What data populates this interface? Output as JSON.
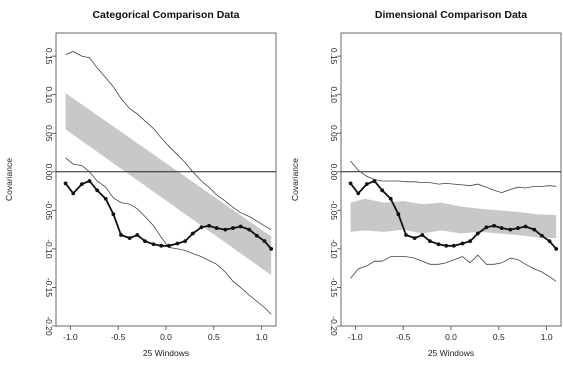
{
  "chart_data": [
    {
      "type": "line",
      "title": "Categorical Comparison Data",
      "xlabel": "25 Windows",
      "ylabel": "Covariance",
      "xlim": [
        -1.15,
        1.15
      ],
      "ylim": [
        -0.2,
        0.18
      ],
      "x_ticks": [
        -1.0,
        -0.5,
        0.0,
        0.5,
        1.0
      ],
      "x_tick_labels": [
        "-1.0",
        "-0.5",
        "0.0",
        "0.5",
        "1.0"
      ],
      "y_ticks": [
        0.15,
        0.1,
        0.05,
        0.0,
        -0.05,
        -0.1,
        -0.15,
        -0.2
      ],
      "y_tick_labels": [
        "0.15",
        "0.10",
        "0.05",
        "0.00",
        "-0.05",
        "-0.10",
        "-0.15",
        "-0.20"
      ],
      "reference_line_y": 0.0,
      "band": {
        "x": [
          -1.05,
          1.1
        ],
        "upper": [
          0.102,
          -0.084
        ],
        "lower": [
          0.055,
          -0.134
        ],
        "color": "#c8c8c8"
      },
      "series": [
        {
          "x": [
            -1.05,
            -0.97,
            -0.88,
            -0.8,
            -0.72,
            -0.63,
            -0.55,
            -0.47,
            -0.38,
            -0.3,
            -0.22,
            -0.13,
            -0.05,
            0.03,
            0.12,
            0.2,
            0.28,
            0.37,
            0.45,
            0.53,
            0.62,
            0.7,
            0.78,
            0.87,
            0.95,
            1.03,
            1.1
          ],
          "y": [
            0.152,
            0.156,
            0.15,
            0.148,
            0.135,
            0.122,
            0.11,
            0.095,
            0.082,
            0.075,
            0.066,
            0.056,
            0.044,
            0.033,
            0.022,
            0.012,
            0.0,
            -0.012,
            -0.02,
            -0.03,
            -0.038,
            -0.046,
            -0.053,
            -0.058,
            -0.064,
            -0.07,
            -0.075
          ],
          "style": "thin"
        },
        {
          "x": [
            -1.05,
            -0.97,
            -0.88,
            -0.8,
            -0.72,
            -0.63,
            -0.55,
            -0.47,
            -0.38,
            -0.3,
            -0.22,
            -0.13,
            -0.05,
            0.03,
            0.12,
            0.2,
            0.28,
            0.37,
            0.45,
            0.53,
            0.62,
            0.7,
            0.78,
            0.87,
            0.95,
            1.03,
            1.1
          ],
          "y": [
            0.018,
            0.01,
            0.008,
            0.0,
            -0.012,
            -0.02,
            -0.034,
            -0.04,
            -0.042,
            -0.048,
            -0.058,
            -0.07,
            -0.085,
            -0.098,
            -0.1,
            -0.102,
            -0.106,
            -0.11,
            -0.115,
            -0.12,
            -0.13,
            -0.142,
            -0.15,
            -0.16,
            -0.168,
            -0.176,
            -0.185
          ],
          "style": "thin"
        },
        {
          "x": [
            -1.05,
            -0.97,
            -0.88,
            -0.8,
            -0.72,
            -0.63,
            -0.55,
            -0.47,
            -0.38,
            -0.3,
            -0.22,
            -0.13,
            -0.05,
            0.03,
            0.12,
            0.2,
            0.28,
            0.37,
            0.45,
            0.53,
            0.62,
            0.7,
            0.78,
            0.87,
            0.95,
            1.03,
            1.1
          ],
          "y": [
            -0.015,
            -0.028,
            -0.016,
            -0.012,
            -0.024,
            -0.035,
            -0.055,
            -0.082,
            -0.086,
            -0.082,
            -0.09,
            -0.094,
            -0.096,
            -0.096,
            -0.093,
            -0.09,
            -0.08,
            -0.072,
            -0.07,
            -0.073,
            -0.075,
            -0.073,
            -0.071,
            -0.075,
            -0.083,
            -0.09,
            -0.1
          ],
          "style": "points"
        }
      ]
    },
    {
      "type": "line",
      "title": "Dimensional Comparison Data",
      "xlabel": "25 Windows",
      "ylabel": "Covariance",
      "xlim": [
        -1.15,
        1.15
      ],
      "ylim": [
        -0.2,
        0.18
      ],
      "x_ticks": [
        -1.0,
        -0.5,
        0.0,
        0.5,
        1.0
      ],
      "x_tick_labels": [
        "-1.0",
        "-0.5",
        "0.0",
        "0.5",
        "1.0"
      ],
      "y_ticks": [
        0.15,
        0.1,
        0.05,
        0.0,
        -0.05,
        -0.1,
        -0.15,
        -0.2
      ],
      "y_tick_labels": [
        "0.15",
        "0.10",
        "0.05",
        "0.00",
        "-0.05",
        "-0.10",
        "-0.15",
        "-0.20"
      ],
      "reference_line_y": 0.0,
      "band": {
        "x": [
          -1.05,
          -0.9,
          -0.7,
          -0.5,
          -0.3,
          -0.1,
          0.1,
          0.3,
          0.5,
          0.7,
          0.9,
          1.1
        ],
        "upper": [
          -0.04,
          -0.035,
          -0.04,
          -0.038,
          -0.042,
          -0.04,
          -0.045,
          -0.048,
          -0.05,
          -0.052,
          -0.055,
          -0.056
        ],
        "lower": [
          -0.078,
          -0.076,
          -0.078,
          -0.075,
          -0.08,
          -0.076,
          -0.08,
          -0.078,
          -0.08,
          -0.082,
          -0.085,
          -0.086
        ],
        "color": "#c8c8c8"
      },
      "series": [
        {
          "x": [
            -1.05,
            -0.97,
            -0.88,
            -0.8,
            -0.72,
            -0.63,
            -0.55,
            -0.47,
            -0.38,
            -0.3,
            -0.22,
            -0.13,
            -0.05,
            0.03,
            0.12,
            0.2,
            0.28,
            0.37,
            0.45,
            0.53,
            0.62,
            0.7,
            0.78,
            0.87,
            0.95,
            1.03,
            1.1
          ],
          "y": [
            0.014,
            0.002,
            -0.006,
            -0.01,
            -0.012,
            -0.012,
            -0.012,
            -0.013,
            -0.013,
            -0.014,
            -0.014,
            -0.016,
            -0.015,
            -0.016,
            -0.017,
            -0.018,
            -0.016,
            -0.02,
            -0.024,
            -0.027,
            -0.023,
            -0.02,
            -0.021,
            -0.019,
            -0.019,
            -0.018,
            -0.019
          ],
          "style": "thin"
        },
        {
          "x": [
            -1.05,
            -0.97,
            -0.88,
            -0.8,
            -0.72,
            -0.63,
            -0.55,
            -0.47,
            -0.38,
            -0.3,
            -0.22,
            -0.13,
            -0.05,
            0.03,
            0.12,
            0.2,
            0.28,
            0.37,
            0.45,
            0.53,
            0.62,
            0.7,
            0.78,
            0.87,
            0.95,
            1.03,
            1.1
          ],
          "y": [
            -0.138,
            -0.126,
            -0.122,
            -0.116,
            -0.116,
            -0.11,
            -0.11,
            -0.11,
            -0.112,
            -0.116,
            -0.12,
            -0.12,
            -0.118,
            -0.114,
            -0.11,
            -0.118,
            -0.108,
            -0.12,
            -0.12,
            -0.118,
            -0.112,
            -0.114,
            -0.12,
            -0.126,
            -0.13,
            -0.136,
            -0.142
          ],
          "style": "thin"
        },
        {
          "x": [
            -1.05,
            -0.97,
            -0.88,
            -0.8,
            -0.72,
            -0.63,
            -0.55,
            -0.47,
            -0.38,
            -0.3,
            -0.22,
            -0.13,
            -0.05,
            0.03,
            0.12,
            0.2,
            0.28,
            0.37,
            0.45,
            0.53,
            0.62,
            0.7,
            0.78,
            0.87,
            0.95,
            1.03,
            1.1
          ],
          "y": [
            -0.015,
            -0.028,
            -0.016,
            -0.012,
            -0.024,
            -0.035,
            -0.055,
            -0.082,
            -0.086,
            -0.082,
            -0.09,
            -0.094,
            -0.096,
            -0.096,
            -0.093,
            -0.09,
            -0.08,
            -0.072,
            -0.07,
            -0.073,
            -0.075,
            -0.073,
            -0.071,
            -0.075,
            -0.083,
            -0.09,
            -0.1
          ],
          "style": "points"
        }
      ]
    }
  ]
}
